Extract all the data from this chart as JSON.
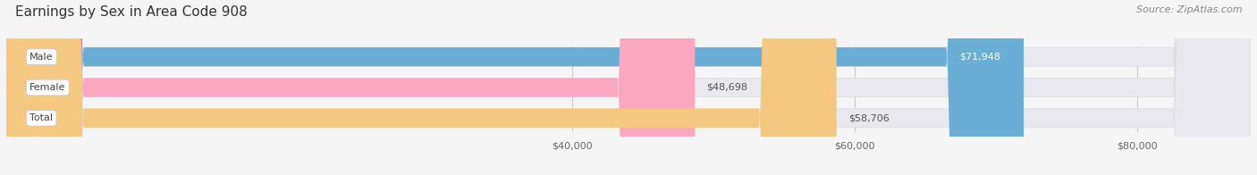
{
  "title": "Earnings by Sex in Area Code 908",
  "source": "Source: ZipAtlas.com",
  "categories": [
    "Male",
    "Female",
    "Total"
  ],
  "values": [
    71948,
    48698,
    58706
  ],
  "bar_colors": [
    "#6aaed6",
    "#f9a8c0",
    "#f5c882"
  ],
  "value_labels": [
    "$71,948",
    "$48,698",
    "$58,706"
  ],
  "xmin": 0,
  "xmax": 88000,
  "xticks": [
    40000,
    60000,
    80000
  ],
  "xtick_labels": [
    "$40,000",
    "$60,000",
    "$80,000"
  ],
  "background_color": "#f5f5f5",
  "bar_bg_color": "#e8e8ee",
  "title_fontsize": 11,
  "source_fontsize": 8,
  "bar_height": 0.62,
  "bar_gap": 0.38
}
